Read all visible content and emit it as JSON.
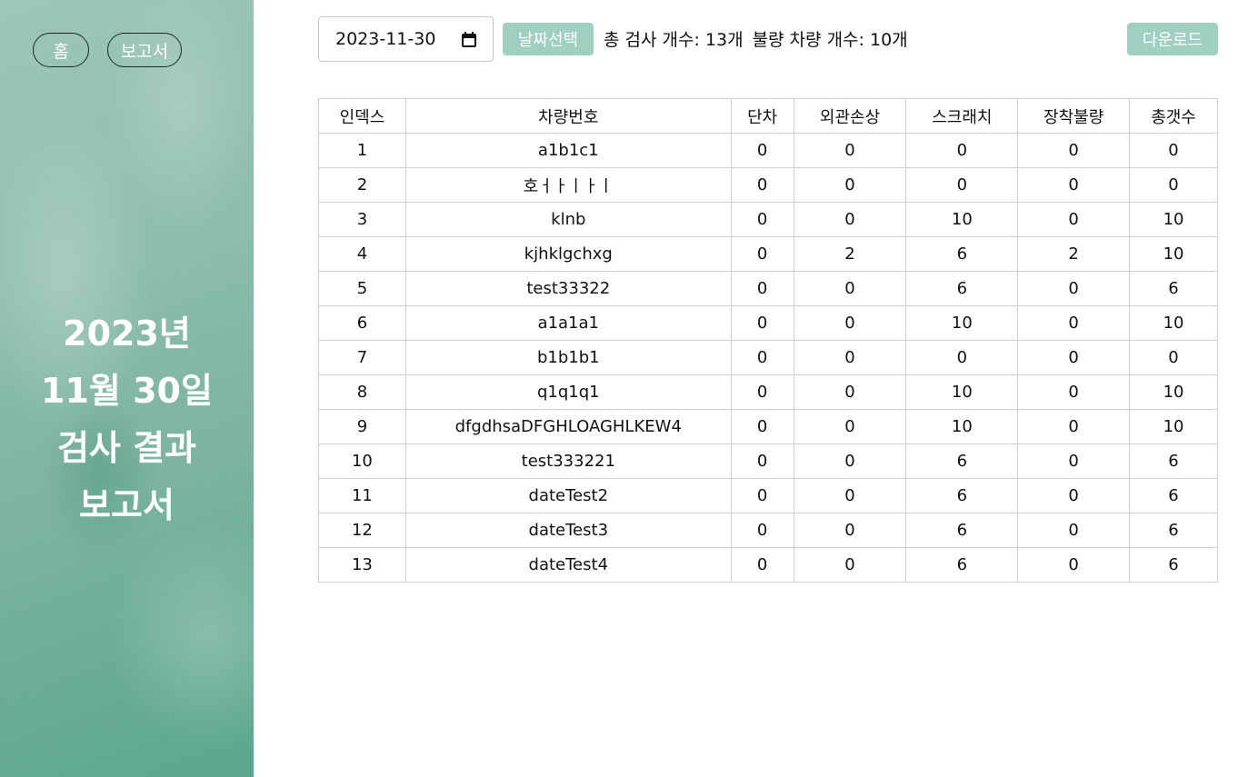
{
  "nav": {
    "home_label": "홈",
    "report_label": "보고서"
  },
  "sidebar": {
    "title_lines": [
      "2023년",
      "11월 30일",
      "검사 결과",
      "보고서"
    ]
  },
  "toolbar": {
    "date_value": "2023-11-30",
    "select_date_label": "날짜선택",
    "total_inspections_text": "총 검사 개수: 13개",
    "defective_vehicles_text": "불량 차량 개수: 10개",
    "download_label": "다운로드"
  },
  "table": {
    "headers": [
      "인덱스",
      "차량번호",
      "단차",
      "외관손상",
      "스크래치",
      "장착불량",
      "총갯수"
    ],
    "rows": [
      [
        "1",
        "a1b1c1",
        "0",
        "0",
        "0",
        "0",
        "0"
      ],
      [
        "2",
        "호ㅓㅏㅣㅏㅣ",
        "0",
        "0",
        "0",
        "0",
        "0"
      ],
      [
        "3",
        "klnb",
        "0",
        "0",
        "10",
        "0",
        "10"
      ],
      [
        "4",
        "kjhklgchxg",
        "0",
        "2",
        "6",
        "2",
        "10"
      ],
      [
        "5",
        "test33322",
        "0",
        "0",
        "6",
        "0",
        "6"
      ],
      [
        "6",
        "a1a1a1",
        "0",
        "0",
        "10",
        "0",
        "10"
      ],
      [
        "7",
        "b1b1b1",
        "0",
        "0",
        "0",
        "0",
        "0"
      ],
      [
        "8",
        "q1q1q1",
        "0",
        "0",
        "10",
        "0",
        "10"
      ],
      [
        "9",
        "dfgdhsaDFGHLOAGHLKEW4",
        "0",
        "0",
        "10",
        "0",
        "10"
      ],
      [
        "10",
        "test333221",
        "0",
        "0",
        "6",
        "0",
        "6"
      ],
      [
        "11",
        "dateTest2",
        "0",
        "0",
        "6",
        "0",
        "6"
      ],
      [
        "12",
        "dateTest3",
        "0",
        "0",
        "6",
        "0",
        "6"
      ],
      [
        "13",
        "dateTest4",
        "0",
        "0",
        "6",
        "0",
        "6"
      ]
    ]
  }
}
